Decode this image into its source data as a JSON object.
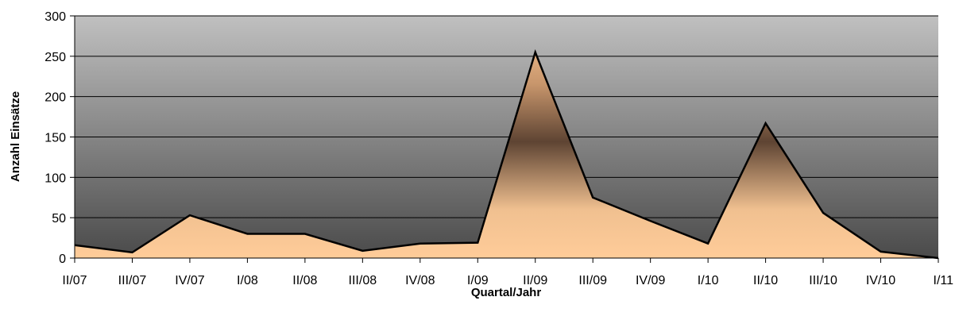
{
  "chart_data": {
    "type": "area",
    "title": "",
    "xlabel": "Quartal/Jahr",
    "ylabel": "Anzahl Einsätze",
    "ylim": [
      0,
      300
    ],
    "yticks": [
      0,
      50,
      100,
      150,
      200,
      250,
      300
    ],
    "grid": true,
    "legend": "none",
    "categories": [
      "II/07",
      "III/07",
      "IV/07",
      "I/08",
      "II/08",
      "III/08",
      "IV/08",
      "I/09",
      "II/09",
      "III/09",
      "IV/09",
      "I/10",
      "II/10",
      "III/10",
      "IV/10",
      "I/11"
    ],
    "series": [
      {
        "values": [
          16,
          7,
          53,
          30,
          30,
          9,
          18,
          19,
          255,
          75,
          46,
          18,
          167,
          56,
          8,
          0
        ]
      }
    ],
    "colors": {
      "plot_bg_top": "#c0c0c0",
      "plot_bg_bottom": "#4a4a4a",
      "area_top": "#5e4433",
      "area_bottom": "#ffcc99",
      "line": "#000000",
      "grid": "#000000"
    }
  }
}
